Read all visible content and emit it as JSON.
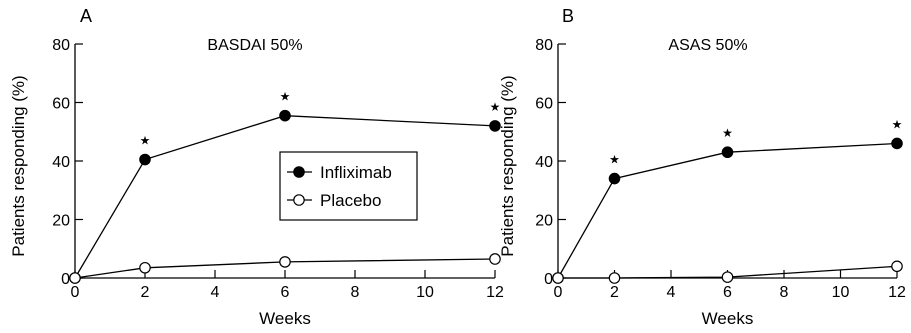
{
  "chart_data": [
    {
      "panel_label": "A",
      "type": "line",
      "title": "BASDAI 50%",
      "xlabel": "Weeks",
      "ylabel": "Patients responding (%)",
      "xlim": [
        0,
        12
      ],
      "ylim": [
        0,
        80
      ],
      "x_ticks": [
        0,
        2,
        4,
        6,
        8,
        10,
        12
      ],
      "y_ticks": [
        0,
        20,
        40,
        60,
        80
      ],
      "grid": false,
      "legend": {
        "placement": "center-right"
      },
      "series": [
        {
          "name": "Infliximab",
          "marker": "filled-circle",
          "x": [
            0,
            2,
            6,
            12
          ],
          "y": [
            0,
            40.5,
            55.5,
            52
          ]
        },
        {
          "name": "Placebo",
          "marker": "open-circle",
          "x": [
            0,
            2,
            6,
            12
          ],
          "y": [
            0,
            3.5,
            5.5,
            6.5
          ]
        }
      ],
      "significance_markers": {
        "symbol": "★",
        "x": [
          2,
          6,
          12
        ]
      }
    },
    {
      "panel_label": "B",
      "type": "line",
      "title": "ASAS 50%",
      "xlabel": "Weeks",
      "ylabel": "Patients responding (%)",
      "xlim": [
        0,
        12
      ],
      "ylim": [
        0,
        80
      ],
      "x_ticks": [
        0,
        2,
        4,
        6,
        8,
        10,
        12
      ],
      "y_ticks": [
        0,
        20,
        40,
        60,
        80
      ],
      "grid": false,
      "series": [
        {
          "name": "Infliximab",
          "marker": "filled-circle",
          "x": [
            0,
            2,
            6,
            12
          ],
          "y": [
            0,
            34,
            43,
            46
          ]
        },
        {
          "name": "Placebo",
          "marker": "open-circle",
          "x": [
            0,
            2,
            6,
            12
          ],
          "y": [
            0,
            0,
            0.3,
            4
          ]
        }
      ],
      "significance_markers": {
        "symbol": "★",
        "x": [
          2,
          6,
          12
        ]
      }
    }
  ]
}
